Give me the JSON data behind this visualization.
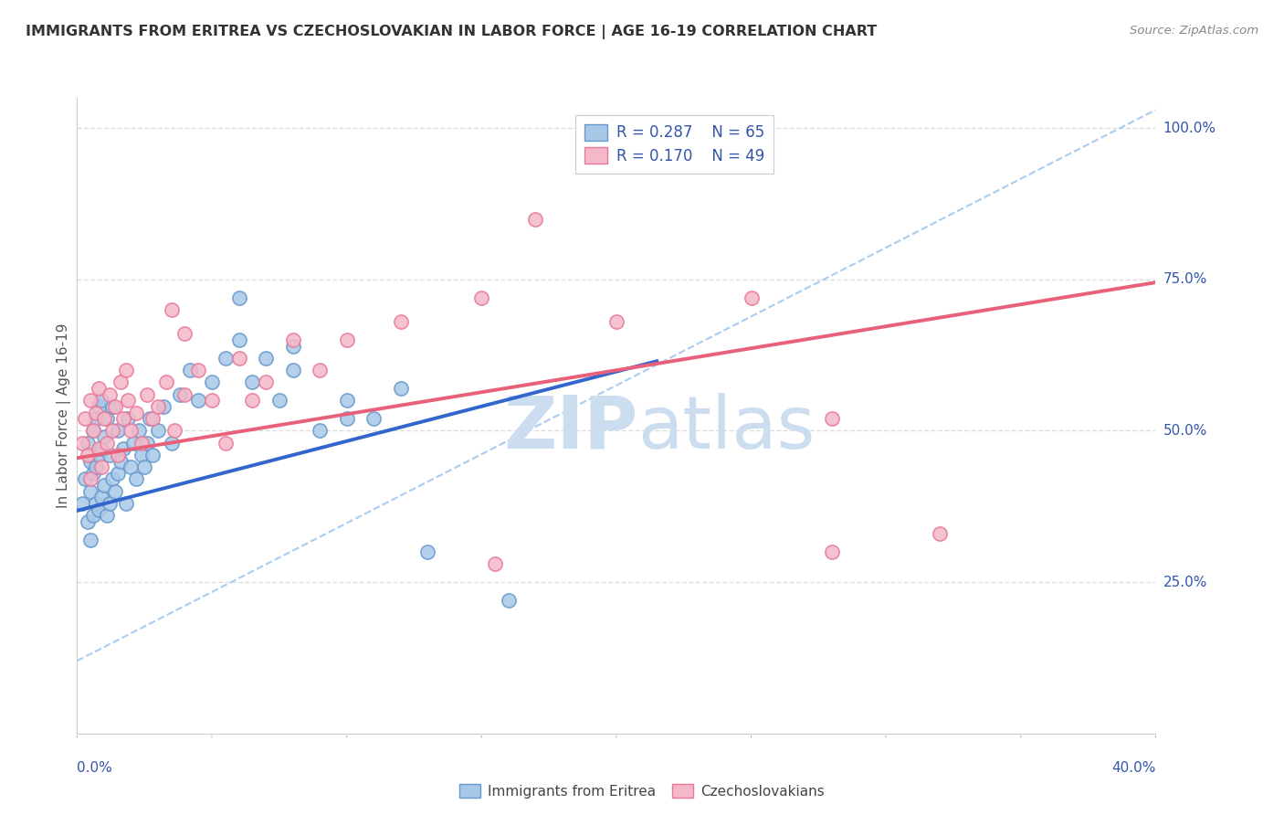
{
  "title": "IMMIGRANTS FROM ERITREA VS CZECHOSLOVAKIAN IN LABOR FORCE | AGE 16-19 CORRELATION CHART",
  "source": "Source: ZipAtlas.com",
  "ylabel_text": "In Labor Force | Age 16-19",
  "legend_label1": "Immigrants from Eritrea",
  "legend_label2": "Czechoslovakians",
  "R1": 0.287,
  "N1": 65,
  "R2": 0.17,
  "N2": 49,
  "blue_dot_color": "#a8c8e8",
  "blue_dot_edge": "#6699cc",
  "blue_line_color": "#3366cc",
  "pink_dot_color": "#f4b8c8",
  "pink_dot_edge": "#e8789a",
  "pink_line_color": "#e8607a",
  "dashed_line_color": "#aaccee",
  "legend_text_color": "#3355aa",
  "watermark_text_color": "#ccddf0",
  "background_color": "#ffffff",
  "title_color": "#333333",
  "grid_color": "#dddddd",
  "axis_label_color": "#3355aa",
  "xlim": [
    0.0,
    0.4
  ],
  "ylim": [
    0.0,
    1.05
  ],
  "yticks": [
    0.25,
    0.5,
    0.75,
    1.0
  ],
  "ytick_labels": [
    "25.0%",
    "50.0%",
    "75.0%",
    "100.0%"
  ],
  "blue_line_x0": 0.0,
  "blue_line_x1": 0.215,
  "blue_line_y0": 0.368,
  "blue_line_y1": 0.615,
  "pink_line_x0": 0.0,
  "pink_line_x1": 0.4,
  "pink_line_y0": 0.455,
  "pink_line_y1": 0.745,
  "dashed_line_x0": 0.0,
  "dashed_line_x1": 0.4,
  "dashed_line_y0": 0.12,
  "dashed_line_y1": 1.03,
  "blue_x": [
    0.002,
    0.003,
    0.004,
    0.004,
    0.005,
    0.005,
    0.005,
    0.006,
    0.006,
    0.006,
    0.007,
    0.007,
    0.007,
    0.008,
    0.008,
    0.008,
    0.009,
    0.009,
    0.009,
    0.01,
    0.01,
    0.011,
    0.011,
    0.012,
    0.012,
    0.013,
    0.013,
    0.014,
    0.015,
    0.015,
    0.016,
    0.017,
    0.018,
    0.019,
    0.02,
    0.021,
    0.022,
    0.023,
    0.024,
    0.025,
    0.026,
    0.027,
    0.028,
    0.03,
    0.032,
    0.035,
    0.038,
    0.042,
    0.045,
    0.05,
    0.055,
    0.06,
    0.065,
    0.07,
    0.075,
    0.08,
    0.09,
    0.1,
    0.11,
    0.12,
    0.06,
    0.08,
    0.1,
    0.13,
    0.16
  ],
  "blue_y": [
    0.38,
    0.42,
    0.35,
    0.48,
    0.32,
    0.4,
    0.45,
    0.36,
    0.43,
    0.5,
    0.38,
    0.44,
    0.52,
    0.37,
    0.46,
    0.54,
    0.39,
    0.47,
    0.55,
    0.41,
    0.49,
    0.36,
    0.52,
    0.38,
    0.46,
    0.42,
    0.54,
    0.4,
    0.43,
    0.5,
    0.45,
    0.47,
    0.38,
    0.52,
    0.44,
    0.48,
    0.42,
    0.5,
    0.46,
    0.44,
    0.48,
    0.52,
    0.46,
    0.5,
    0.54,
    0.48,
    0.56,
    0.6,
    0.55,
    0.58,
    0.62,
    0.65,
    0.58,
    0.62,
    0.55,
    0.6,
    0.5,
    0.55,
    0.52,
    0.57,
    0.72,
    0.64,
    0.52,
    0.3,
    0.22
  ],
  "pink_x": [
    0.002,
    0.003,
    0.004,
    0.005,
    0.005,
    0.006,
    0.007,
    0.008,
    0.008,
    0.009,
    0.01,
    0.011,
    0.012,
    0.013,
    0.014,
    0.015,
    0.016,
    0.017,
    0.018,
    0.019,
    0.02,
    0.022,
    0.024,
    0.026,
    0.028,
    0.03,
    0.033,
    0.036,
    0.04,
    0.045,
    0.05,
    0.06,
    0.07,
    0.08,
    0.09,
    0.1,
    0.12,
    0.15,
    0.2,
    0.25,
    0.035,
    0.04,
    0.055,
    0.065,
    0.17,
    0.28,
    0.32,
    0.28,
    0.155
  ],
  "pink_y": [
    0.48,
    0.52,
    0.46,
    0.55,
    0.42,
    0.5,
    0.53,
    0.47,
    0.57,
    0.44,
    0.52,
    0.48,
    0.56,
    0.5,
    0.54,
    0.46,
    0.58,
    0.52,
    0.6,
    0.55,
    0.5,
    0.53,
    0.48,
    0.56,
    0.52,
    0.54,
    0.58,
    0.5,
    0.56,
    0.6,
    0.55,
    0.62,
    0.58,
    0.65,
    0.6,
    0.65,
    0.68,
    0.72,
    0.68,
    0.72,
    0.7,
    0.66,
    0.48,
    0.55,
    0.85,
    0.52,
    0.33,
    0.3,
    0.28
  ]
}
